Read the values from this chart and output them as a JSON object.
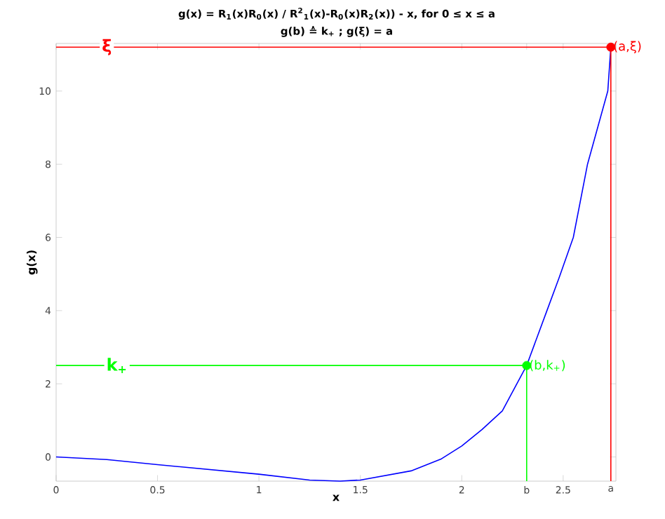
{
  "chart_data": {
    "type": "line",
    "title": "g(x) = R$_{1}$(x)R$_{0}$(x) / R$^{2}$$_{1}$(x)-R$_{0}$(x)R$_{2}$(x)) - x, for 0 ≤ x ≤ a",
    "subtitle": "g(b) ≙ k$_{+}$ ; g(ξ)  = a",
    "xlabel": "x",
    "ylabel": "g(x)",
    "xlim": [
      0,
      2.76
    ],
    "ylim": [
      -0.66,
      11.3
    ],
    "xticks": [
      0,
      0.5,
      1,
      1.5,
      2,
      2.5,
      {
        "value": 2.32,
        "label": "b"
      },
      {
        "value": 2.735,
        "label": "a"
      }
    ],
    "yticks": [
      0,
      2,
      4,
      6,
      8,
      10
    ],
    "series": [
      {
        "color": "#0000ff",
        "x": [
          0,
          0.25,
          0.5,
          0.75,
          1,
          1.25,
          1.4,
          1.5,
          1.75,
          1.9,
          2,
          2.1,
          2.2,
          2.32,
          2.42,
          2.48,
          2.55,
          2.62,
          2.72,
          2.735
        ],
        "values": [
          0,
          -0.07,
          -0.21,
          -0.34,
          -0.47,
          -0.63,
          -0.66,
          -0.63,
          -0.38,
          -0.05,
          0.3,
          0.75,
          1.26,
          2.5,
          4,
          4.9,
          6,
          8,
          10,
          11.2
        ]
      },
      {
        "color": "#00ff00",
        "x": [
          0,
          2.32,
          2.32
        ],
        "values": [
          2.5,
          2.5,
          -0.66
        ]
      },
      {
        "color": "#ff0000",
        "x": [
          0,
          2.735,
          2.735
        ],
        "values": [
          11.2,
          11.2,
          -0.66
        ]
      },
      {
        "type": "scatter",
        "marker": "circle",
        "color": "#00ff00",
        "x": [
          2.32
        ],
        "values": [
          2.5
        ]
      },
      {
        "type": "scatter",
        "marker": "circle",
        "color": "#ff0000",
        "x": [
          2.735
        ],
        "values": [
          11.2
        ]
      }
    ],
    "annotations": [
      {
        "text": "ξ",
        "x": 0.25,
        "y": 11.2
      },
      {
        "text": "k$_{+}$",
        "x": 0.3,
        "y": 2.5
      },
      {
        "text": "(a,ξ)",
        "x": 2.735,
        "y": 11.2
      },
      {
        "text": "(b,k$_{+}$)",
        "x": 2.32,
        "y": 2.5
      }
    ],
    "marker": "none",
    "grid": false
  }
}
